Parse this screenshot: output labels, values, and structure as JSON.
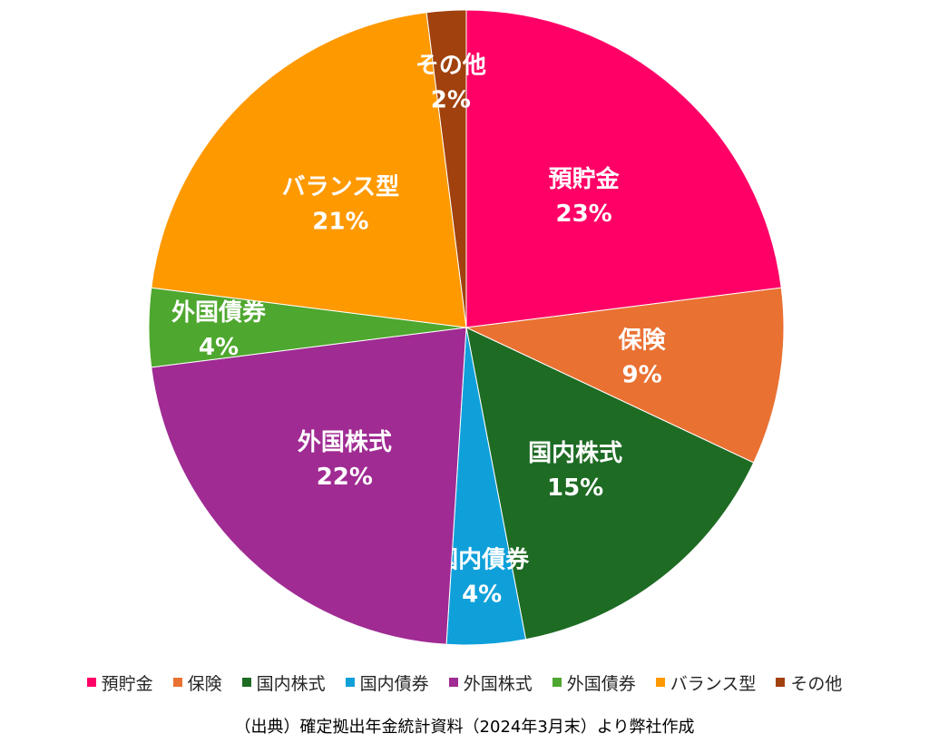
{
  "chart_data": {
    "type": "pie",
    "slices": [
      {
        "name": "預貯金",
        "value": 23,
        "label": "23%",
        "color": "#FF0066"
      },
      {
        "name": "保険",
        "value": 9,
        "label": "9%",
        "color": "#E97132"
      },
      {
        "name": "国内株式",
        "value": 15,
        "label": "15%",
        "color": "#1E6B24"
      },
      {
        "name": "国内債券",
        "value": 4,
        "label": "4%",
        "color": "#0FA0DA"
      },
      {
        "name": "外国株式",
        "value": 22,
        "label": "22%",
        "color": "#A02B93"
      },
      {
        "name": "外国債券",
        "value": 4,
        "label": "4%",
        "color": "#4EA72E"
      },
      {
        "name": "バランス型",
        "value": 21,
        "label": "21%",
        "color": "#FF9900"
      },
      {
        "name": "その他",
        "value": 2,
        "label": "2%",
        "color": "#A0410E"
      }
    ],
    "legend_position": "bottom",
    "start_angle_deg": 0,
    "direction": "clockwise"
  },
  "source_note": "（出典）確定拠出年金統計資料（2024年3月末）より弊社作成"
}
